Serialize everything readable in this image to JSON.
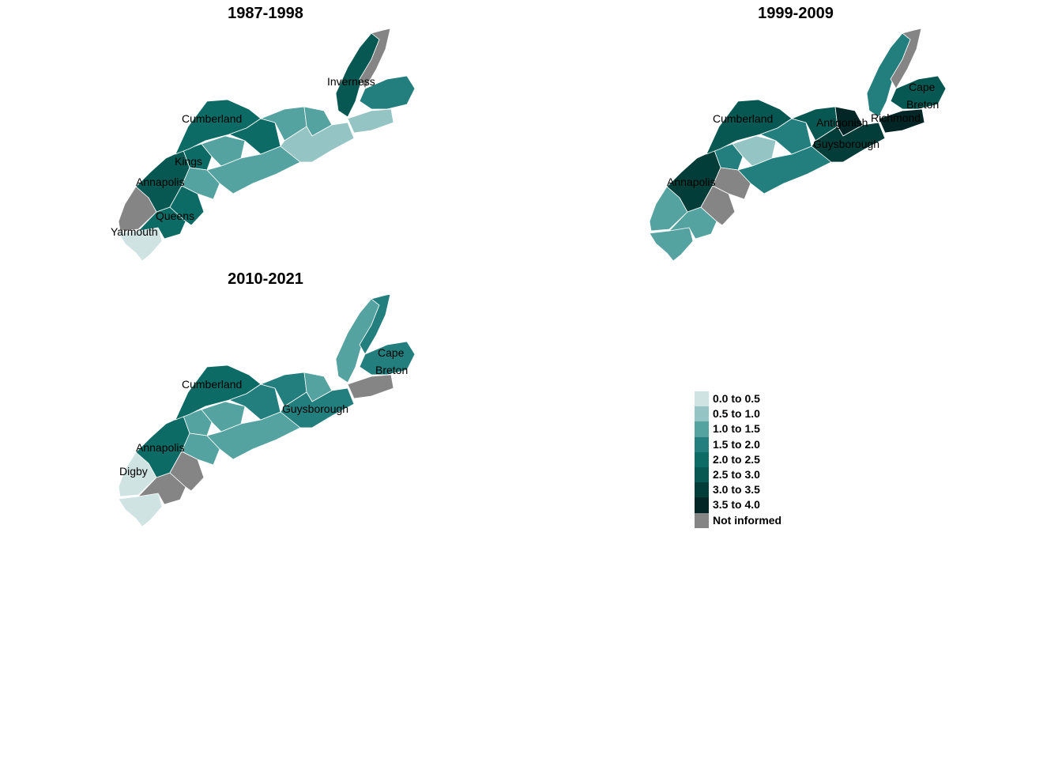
{
  "panels": [
    {
      "title": "1987-1998",
      "labels": [
        "Inverness",
        "Cumberland",
        "Kings",
        "Annapolis",
        "Queens",
        "Yarmouth"
      ]
    },
    {
      "title": "1999-2009",
      "labels": [
        "Cape",
        "Breton",
        "Cumberland",
        "Antigonish",
        "Richmond",
        "Guysborough",
        "Annapolis"
      ]
    },
    {
      "title": "2010-2021",
      "labels": [
        "Cape",
        "Breton",
        "Cumberland",
        "Guysborough",
        "Annapolis",
        "Digby"
      ]
    }
  ],
  "legend": {
    "items": [
      {
        "label": "0.0 to 0.5",
        "color": "#cfe3e3"
      },
      {
        "label": "0.5 to 1.0",
        "color": "#94c4c4"
      },
      {
        "label": "1.0 to 1.5",
        "color": "#54a3a1"
      },
      {
        "label": "1.5 to 2.0",
        "color": "#237f7e"
      },
      {
        "label": "2.0 to 2.5",
        "color": "#0d6b66"
      },
      {
        "label": "2.5 to 3.0",
        "color": "#075852"
      },
      {
        "label": "3.0 to 3.5",
        "color": "#033d3a"
      },
      {
        "label": "3.5 to 4.0",
        "color": "#012625"
      },
      {
        "label": "Not informed",
        "color": "#858585"
      }
    ]
  }
}
